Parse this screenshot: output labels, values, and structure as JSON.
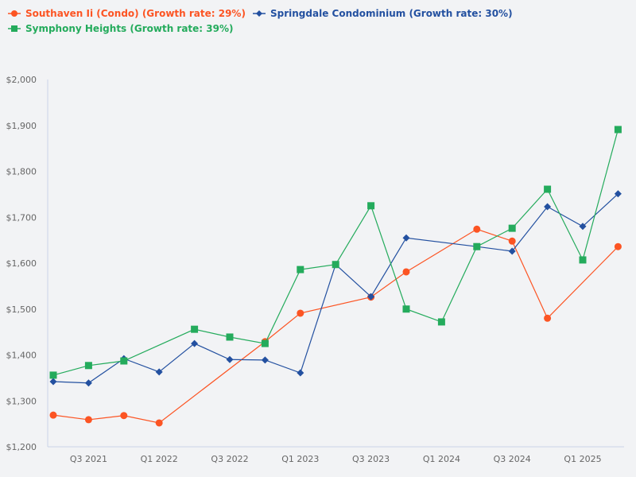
{
  "chart_data": {
    "type": "line",
    "title": "",
    "xlabel": "",
    "ylabel": "",
    "ylim": [
      1200,
      2000
    ],
    "y_ticks": [
      "$1,200",
      "$1,300",
      "$1,400",
      "$1,500",
      "$1,600",
      "$1,700",
      "$1,800",
      "$1,900",
      "$2,000"
    ],
    "x_tick_labels": [
      "Q3 2021",
      "Q1 2022",
      "Q3 2022",
      "Q1 2023",
      "Q3 2023",
      "Q1 2024",
      "Q3 2024",
      "Q1 2025"
    ],
    "x": [
      "Q2 2021",
      "Q3 2021",
      "Q4 2021",
      "Q1 2022",
      "Q2 2022",
      "Q3 2022",
      "Q4 2022",
      "Q1 2023",
      "Q2 2023",
      "Q3 2023",
      "Q4 2023",
      "Q1 2024",
      "Q2 2024",
      "Q3 2024",
      "Q4 2024",
      "Q1 2025",
      "Q2 2025"
    ],
    "grid": false,
    "legend_position": "top-left",
    "series": [
      {
        "name": "Southaven Ii (Condo) (Growth rate: 29%)",
        "color": "#fc5423",
        "marker": "circle",
        "values": [
          1269,
          1259,
          1268,
          1252,
          null,
          null,
          1429,
          1491,
          null,
          1526,
          1581,
          null,
          1674,
          1648,
          1480,
          null,
          1636
        ]
      },
      {
        "name": "Springdale Condominium (Growth rate: 30%)",
        "color": "#2350a0",
        "marker": "diamond",
        "values": [
          1342,
          1339,
          1392,
          1363,
          1425,
          1390,
          1389,
          1361,
          1597,
          1527,
          1655,
          null,
          1636,
          1626,
          1723,
          1680,
          1751
        ]
      },
      {
        "name": "Symphony Heights (Growth rate: 39%)",
        "color": "#24ab5c",
        "marker": "square",
        "values": [
          1356,
          1377,
          1387,
          null,
          1456,
          1439,
          1425,
          1586,
          1597,
          1725,
          1500,
          1472,
          1636,
          1676,
          1761,
          1607,
          1891
        ]
      }
    ]
  },
  "legend": {
    "items": [
      {
        "label": "Southaven Ii (Condo) (Growth rate: 29%)",
        "color": "#fc5423"
      },
      {
        "label": "Springdale Condominium (Growth rate: 30%)",
        "color": "#2350a0"
      },
      {
        "label": "Symphony Heights (Growth rate: 39%)",
        "color": "#24ab5c"
      }
    ]
  }
}
